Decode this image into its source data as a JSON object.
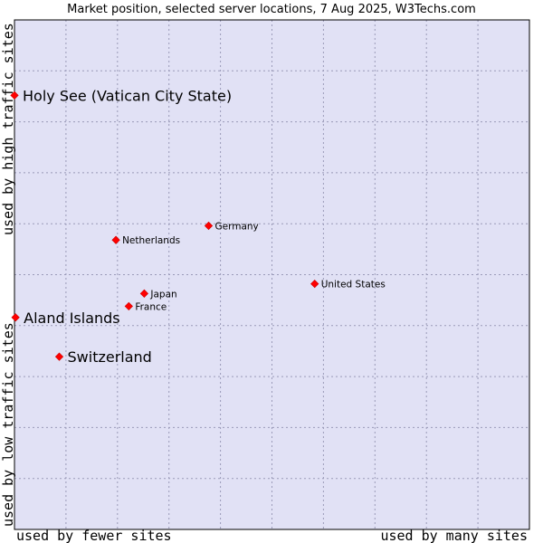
{
  "chart_data": {
    "type": "scatter",
    "title": "Market position, selected server locations, 7 Aug 2025, W3Techs.com",
    "xlabel_left": "used by fewer sites",
    "xlabel_right": "used by many sites",
    "ylabel_bottom": "used by low traffic sites",
    "ylabel_top": "used by high traffic sites",
    "xlim": [
      0,
      100
    ],
    "ylim": [
      0,
      100
    ],
    "grid": true,
    "colors": {
      "plot_bg": "#e1e1f5",
      "grid": "#9a9ab8",
      "frame": "#000000",
      "point": "#ff0000"
    },
    "points": [
      {
        "label": "Holy See (Vatican City State)",
        "x": 0.0,
        "y": 85.2,
        "highlight": true
      },
      {
        "label": "Aland Islands",
        "x": 0.2,
        "y": 41.6,
        "highlight": true
      },
      {
        "label": "Switzerland",
        "x": 8.7,
        "y": 33.9,
        "highlight": true
      },
      {
        "label": "Germany",
        "x": 37.7,
        "y": 59.6,
        "highlight": false
      },
      {
        "label": "Netherlands",
        "x": 19.7,
        "y": 56.8,
        "highlight": false
      },
      {
        "label": "Japan",
        "x": 25.2,
        "y": 46.3,
        "highlight": false
      },
      {
        "label": "France",
        "x": 22.2,
        "y": 43.8,
        "highlight": false
      },
      {
        "label": "United States",
        "x": 58.3,
        "y": 48.2,
        "highlight": false
      }
    ]
  }
}
